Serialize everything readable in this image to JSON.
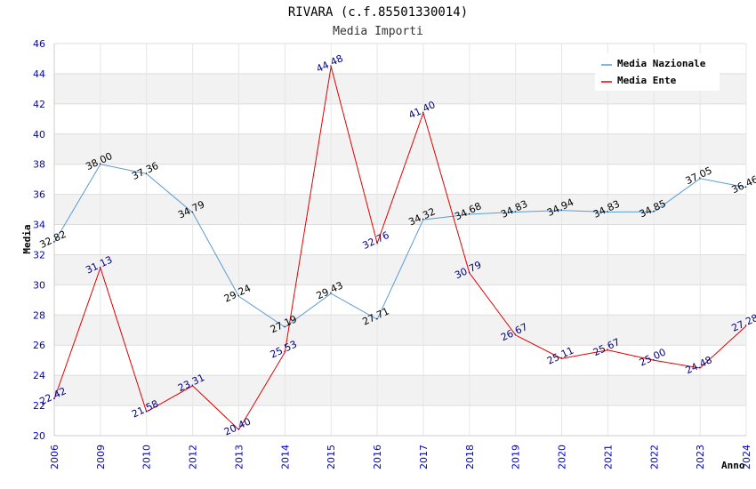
{
  "chart_data": {
    "type": "line",
    "title": "RIVARA (c.f.85501330014)",
    "subtitle": "Media Importi",
    "xlabel": "Anno",
    "ylabel": "Media",
    "ylim": [
      20,
      46
    ],
    "ytick_step": 2,
    "categories": [
      "2006",
      "2009",
      "2010",
      "2012",
      "2013",
      "2014",
      "2015",
      "2016",
      "2017",
      "2018",
      "2019",
      "2020",
      "2021",
      "2022",
      "2023",
      "2024"
    ],
    "series": [
      {
        "name": "Media Nazionale",
        "color": "#5b9bd5",
        "values": [
          32.82,
          38.0,
          37.36,
          34.79,
          29.24,
          27.19,
          29.43,
          27.71,
          34.32,
          34.68,
          34.83,
          34.94,
          34.83,
          34.85,
          37.05,
          36.46
        ],
        "labels": [
          "32.82",
          "38.00",
          "37.36",
          "34.79",
          "29.24",
          "27.19",
          "29.43",
          "27.71",
          "34.32",
          "34.68",
          "34.83",
          "34.94",
          "34.83",
          "34.85",
          "37.05",
          "36.46"
        ]
      },
      {
        "name": "Media Ente",
        "color": "#e00000",
        "values": [
          22.42,
          31.13,
          21.58,
          23.31,
          20.4,
          25.53,
          44.48,
          32.76,
          41.4,
          30.79,
          26.67,
          25.11,
          25.67,
          25.0,
          24.48,
          27.28
        ],
        "labels": [
          "22.42",
          "31.13",
          "21.58",
          "23.31",
          "20.40",
          "25.53",
          "44.48",
          "32.76",
          "41.40",
          "30.79",
          "26.67",
          "25.11",
          "25.67",
          "25.00",
          "24.48",
          "27.28"
        ]
      }
    ],
    "grid": true,
    "legend_position": "top-right"
  }
}
